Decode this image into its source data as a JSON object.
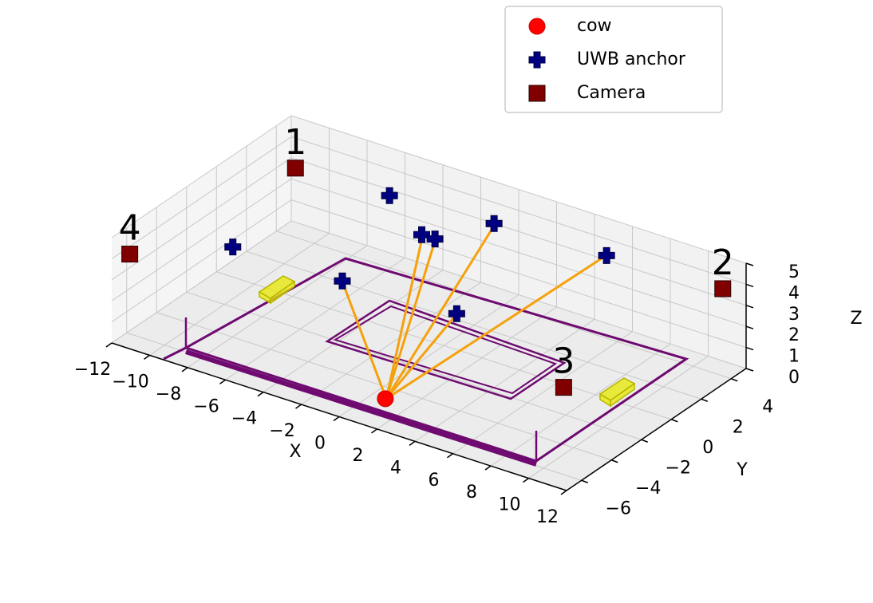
{
  "chart_data": {
    "type": "scatter3d",
    "xlabel": "X",
    "ylabel": "Y",
    "zlabel": "Z",
    "xlim": [
      -12,
      12
    ],
    "ylim": [
      -7,
      5
    ],
    "zlim": [
      0,
      5
    ],
    "xticks": [
      {
        "value": -12,
        "label": "−12"
      },
      {
        "value": -10,
        "label": "−10"
      },
      {
        "value": -8,
        "label": "−8"
      },
      {
        "value": -6,
        "label": "−6"
      },
      {
        "value": -4,
        "label": "−4"
      },
      {
        "value": -2,
        "label": "−2"
      },
      0,
      2,
      4,
      6,
      8,
      10,
      12
    ],
    "yticks": [
      {
        "value": -6,
        "label": "−6"
      },
      {
        "value": -4,
        "label": "−4"
      },
      {
        "value": -2,
        "label": "−2"
      },
      0,
      2,
      4
    ],
    "zticks": [
      0,
      1,
      2,
      3,
      4,
      5
    ],
    "grid": true,
    "legend": "upper right",
    "series": [
      {
        "name": "cow",
        "color": "#ff0000",
        "marker": "circle",
        "x": [
          0.7
        ],
        "y": [
          -4.8
        ],
        "z": [
          0
        ]
      },
      {
        "name": "UWB anchor",
        "color": "#000080",
        "marker": "plus",
        "x": [
          -6.5,
          -9.4,
          -3.3,
          -2.6,
          -1.3,
          4.4,
          -3.7,
          2.1
        ],
        "y": [
          4.6,
          -2.2,
          2.7,
          2.7,
          5.0,
          5.3,
          -2.1,
          -1.8
        ],
        "z": [
          3,
          3,
          3,
          3,
          3,
          3,
          3,
          3
        ]
      },
      {
        "name": "Camera",
        "color": "#800000",
        "marker": "square",
        "x": [
          -10.2,
          11.4,
          10.9,
          -11.6
        ],
        "y": [
          3.0,
          4.2,
          -5.8,
          -6.3
        ],
        "z": [
          4,
          4,
          4,
          4
        ],
        "labels": [
          "1",
          "2",
          "3",
          "4"
        ]
      }
    ]
  }
}
